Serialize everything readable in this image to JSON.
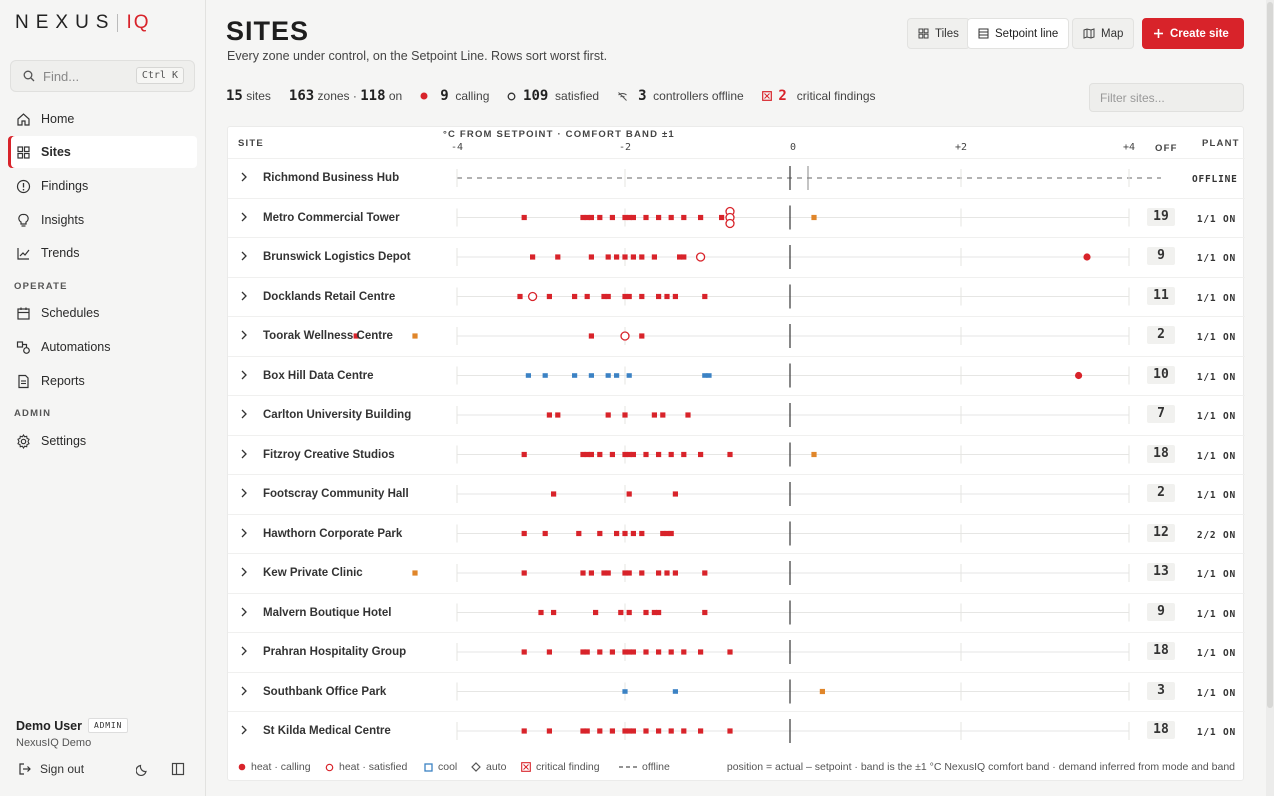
{
  "brand": {
    "name": "NEXUS",
    "suffix": "IQ"
  },
  "search": {
    "placeholder": "Find...",
    "shortcut": "Ctrl K"
  },
  "nav": {
    "main": [
      {
        "label": "Home",
        "icon": "home-icon"
      },
      {
        "label": "Sites",
        "icon": "grid-icon",
        "active": true
      },
      {
        "label": "Findings",
        "icon": "alert-circle-icon"
      },
      {
        "label": "Insights",
        "icon": "lightbulb-icon"
      },
      {
        "label": "Trends",
        "icon": "trend-chart-icon"
      }
    ],
    "operate_label": "OPERATE",
    "operate": [
      {
        "label": "Schedules",
        "icon": "calendar-icon"
      },
      {
        "label": "Automations",
        "icon": "automation-icon"
      },
      {
        "label": "Reports",
        "icon": "report-icon"
      }
    ],
    "admin_label": "ADMIN",
    "admin": [
      {
        "label": "Settings",
        "icon": "gear-icon"
      }
    ]
  },
  "user": {
    "name": "Demo User",
    "role": "ADMIN",
    "org": "NexusIQ Demo",
    "signout": "Sign out"
  },
  "page": {
    "title": "SITES",
    "subtitle": "Every zone under control, on the Setpoint Line. Rows sort worst first."
  },
  "views": {
    "tiles": "Tiles",
    "setpoint": "Setpoint line",
    "map": "Map",
    "create": "Create site"
  },
  "stats": {
    "sites_n": "15",
    "sites_l": "sites",
    "zones_n": "163",
    "zones_l": "zones ·",
    "on_n": "118",
    "on_l": "on",
    "calling_n": "9",
    "calling_l": "calling",
    "satisfied_n": "109",
    "satisfied_l": "satisfied",
    "offline_n": "3",
    "offline_l": "controllers offline",
    "critical_n": "2",
    "critical_l": "critical findings"
  },
  "filter_placeholder": "Filter sites...",
  "colors": {
    "heat": "#d8232a",
    "heat_satisfied": "#d8232a",
    "cool": "#3b82c4",
    "auto": "#e0862a",
    "accent": "#d8232a"
  },
  "columns": {
    "site": "SITE",
    "scale": "°C FROM SETPOINT · COMFORT BAND ±1",
    "plant": "PLANT",
    "off": "OFF",
    "ticks": [
      "-4",
      "-2",
      "0",
      "+2",
      "+4"
    ]
  },
  "sites": [
    {
      "name": "Richmond Business Hub",
      "count": "",
      "plant": "OFFLINE",
      "offline": true,
      "marks": []
    },
    {
      "name": "Metro Commercial Tower",
      "count": "19",
      "plant": "1/1 ON",
      "marks": [
        [
          "h",
          -3.2
        ],
        [
          "h",
          -2.5
        ],
        [
          "h",
          -2.45
        ],
        [
          "h",
          -2.4
        ],
        [
          "h",
          -2.3
        ],
        [
          "h",
          -2.15
        ],
        [
          "h",
          -2.0
        ],
        [
          "h",
          -1.95
        ],
        [
          "h",
          -1.9
        ],
        [
          "h",
          -1.75
        ],
        [
          "h",
          -1.6
        ],
        [
          "h",
          -1.45
        ],
        [
          "h",
          -1.3
        ],
        [
          "h",
          -1.1
        ],
        [
          "h",
          -0.85
        ],
        [
          "s",
          -0.75
        ],
        [
          "s",
          -0.75
        ],
        [
          "s",
          -0.75
        ],
        [
          "a",
          0.25
        ]
      ]
    },
    {
      "name": "Brunswick Logistics Depot",
      "count": "9",
      "plant": "1/1 ON",
      "marks": [
        [
          "h",
          -3.1
        ],
        [
          "h",
          -2.8
        ],
        [
          "h",
          -2.4
        ],
        [
          "h",
          -2.2
        ],
        [
          "h",
          -2.1
        ],
        [
          "h",
          -2.0
        ],
        [
          "h",
          -1.9
        ],
        [
          "h",
          -1.8
        ],
        [
          "h",
          -1.65
        ],
        [
          "h",
          -1.35
        ],
        [
          "h",
          -1.3
        ],
        [
          "s",
          -1.1
        ],
        [
          "c",
          3.5
        ]
      ]
    },
    {
      "name": "Docklands Retail Centre",
      "count": "11",
      "plant": "1/1 ON",
      "marks": [
        [
          "h",
          -3.25
        ],
        [
          "s",
          -3.1
        ],
        [
          "h",
          -2.9
        ],
        [
          "h",
          -2.6
        ],
        [
          "h",
          -2.45
        ],
        [
          "h",
          -2.25
        ],
        [
          "h",
          -2.2
        ],
        [
          "h",
          -2.0
        ],
        [
          "h",
          -1.95
        ],
        [
          "h",
          -1.8
        ],
        [
          "h",
          -1.6
        ],
        [
          "h",
          -1.5
        ],
        [
          "h",
          -1.4
        ],
        [
          "h",
          -1.05
        ]
      ]
    },
    {
      "name": "Toorak Wellness Centre",
      "count": "2",
      "plant": "1/1 ON",
      "marks": [
        [
          "h",
          -5.2
        ],
        [
          "a",
          -4.5
        ],
        [
          "h",
          -2.4
        ],
        [
          "s",
          -2.0
        ],
        [
          "h",
          -1.8
        ]
      ]
    },
    {
      "name": "Box Hill Data Centre",
      "count": "10",
      "plant": "1/1 ON",
      "marks": [
        [
          "b",
          -3.15
        ],
        [
          "b",
          -2.95
        ],
        [
          "b",
          -2.6
        ],
        [
          "b",
          -2.4
        ],
        [
          "b",
          -2.2
        ],
        [
          "b",
          -2.1
        ],
        [
          "b",
          -1.95
        ],
        [
          "b",
          -1.05
        ],
        [
          "b",
          -1.0
        ],
        [
          "c",
          3.4
        ]
      ]
    },
    {
      "name": "Carlton University Building",
      "count": "7",
      "plant": "1/1 ON",
      "marks": [
        [
          "h",
          -2.9
        ],
        [
          "h",
          -2.8
        ],
        [
          "h",
          -2.2
        ],
        [
          "h",
          -2.0
        ],
        [
          "h",
          -1.65
        ],
        [
          "h",
          -1.55
        ],
        [
          "h",
          -1.25
        ]
      ]
    },
    {
      "name": "Fitzroy Creative Studios",
      "count": "18",
      "plant": "1/1 ON",
      "marks": [
        [
          "h",
          -3.2
        ],
        [
          "h",
          -2.5
        ],
        [
          "h",
          -2.45
        ],
        [
          "h",
          -2.4
        ],
        [
          "h",
          -2.3
        ],
        [
          "h",
          -2.15
        ],
        [
          "h",
          -2.0
        ],
        [
          "h",
          -1.95
        ],
        [
          "h",
          -1.9
        ],
        [
          "h",
          -1.75
        ],
        [
          "h",
          -1.6
        ],
        [
          "h",
          -1.45
        ],
        [
          "h",
          -1.3
        ],
        [
          "h",
          -1.1
        ],
        [
          "h",
          -0.75
        ],
        [
          "a",
          0.25
        ]
      ]
    },
    {
      "name": "Footscray Community Hall",
      "count": "2",
      "plant": "1/1 ON",
      "marks": [
        [
          "h",
          -2.85
        ],
        [
          "h",
          -1.95
        ],
        [
          "h",
          -1.4
        ]
      ]
    },
    {
      "name": "Hawthorn Corporate Park",
      "count": "12",
      "plant": "2/2 ON",
      "marks": [
        [
          "h",
          -3.2
        ],
        [
          "h",
          -2.95
        ],
        [
          "h",
          -2.55
        ],
        [
          "h",
          -2.3
        ],
        [
          "h",
          -2.1
        ],
        [
          "h",
          -2.0
        ],
        [
          "h",
          -1.9
        ],
        [
          "h",
          -1.8
        ],
        [
          "h",
          -1.55
        ],
        [
          "h",
          -1.5
        ],
        [
          "h",
          -1.45
        ]
      ]
    },
    {
      "name": "Kew Private Clinic",
      "count": "13",
      "plant": "1/1 ON",
      "marks": [
        [
          "a",
          -4.5
        ],
        [
          "h",
          -3.2
        ],
        [
          "h",
          -2.5
        ],
        [
          "h",
          -2.4
        ],
        [
          "h",
          -2.25
        ],
        [
          "h",
          -2.2
        ],
        [
          "h",
          -2.0
        ],
        [
          "h",
          -1.95
        ],
        [
          "h",
          -1.8
        ],
        [
          "h",
          -1.6
        ],
        [
          "h",
          -1.5
        ],
        [
          "h",
          -1.4
        ],
        [
          "h",
          -1.05
        ]
      ]
    },
    {
      "name": "Malvern Boutique Hotel",
      "count": "9",
      "plant": "1/1 ON",
      "marks": [
        [
          "h",
          -3.0
        ],
        [
          "h",
          -2.85
        ],
        [
          "h",
          -2.35
        ],
        [
          "h",
          -2.05
        ],
        [
          "h",
          -1.95
        ],
        [
          "h",
          -1.75
        ],
        [
          "h",
          -1.65
        ],
        [
          "h",
          -1.6
        ],
        [
          "h",
          -1.05
        ]
      ]
    },
    {
      "name": "Prahran Hospitality Group",
      "count": "18",
      "plant": "1/1 ON",
      "marks": [
        [
          "h",
          -3.2
        ],
        [
          "h",
          -2.9
        ],
        [
          "h",
          -2.5
        ],
        [
          "h",
          -2.45
        ],
        [
          "h",
          -2.3
        ],
        [
          "h",
          -2.15
        ],
        [
          "h",
          -2.0
        ],
        [
          "h",
          -1.95
        ],
        [
          "h",
          -1.9
        ],
        [
          "h",
          -1.75
        ],
        [
          "h",
          -1.6
        ],
        [
          "h",
          -1.45
        ],
        [
          "h",
          -1.3
        ],
        [
          "h",
          -1.1
        ],
        [
          "h",
          -0.75
        ]
      ]
    },
    {
      "name": "Southbank Office Park",
      "count": "3",
      "plant": "1/1 ON",
      "marks": [
        [
          "b",
          -2.0
        ],
        [
          "b",
          -1.4
        ],
        [
          "a",
          0.35
        ]
      ]
    },
    {
      "name": "St Kilda Medical Centre",
      "count": "18",
      "plant": "1/1 ON",
      "marks": [
        [
          "h",
          -3.2
        ],
        [
          "h",
          -2.9
        ],
        [
          "h",
          -2.5
        ],
        [
          "h",
          -2.45
        ],
        [
          "h",
          -2.3
        ],
        [
          "h",
          -2.15
        ],
        [
          "h",
          -2.0
        ],
        [
          "h",
          -1.95
        ],
        [
          "h",
          -1.9
        ],
        [
          "h",
          -1.75
        ],
        [
          "h",
          -1.6
        ],
        [
          "h",
          -1.45
        ],
        [
          "h",
          -1.3
        ],
        [
          "h",
          -1.1
        ],
        [
          "h",
          -0.75
        ]
      ]
    }
  ],
  "legend": {
    "calling": "heat · calling",
    "satisfied": "heat · satisfied",
    "cool": "cool",
    "auto": "auto",
    "critical": "critical finding",
    "offline": "offline",
    "note": "position = actual – setpoint · band is the ±1 °C NexusIQ comfort band · demand inferred from mode and band"
  }
}
